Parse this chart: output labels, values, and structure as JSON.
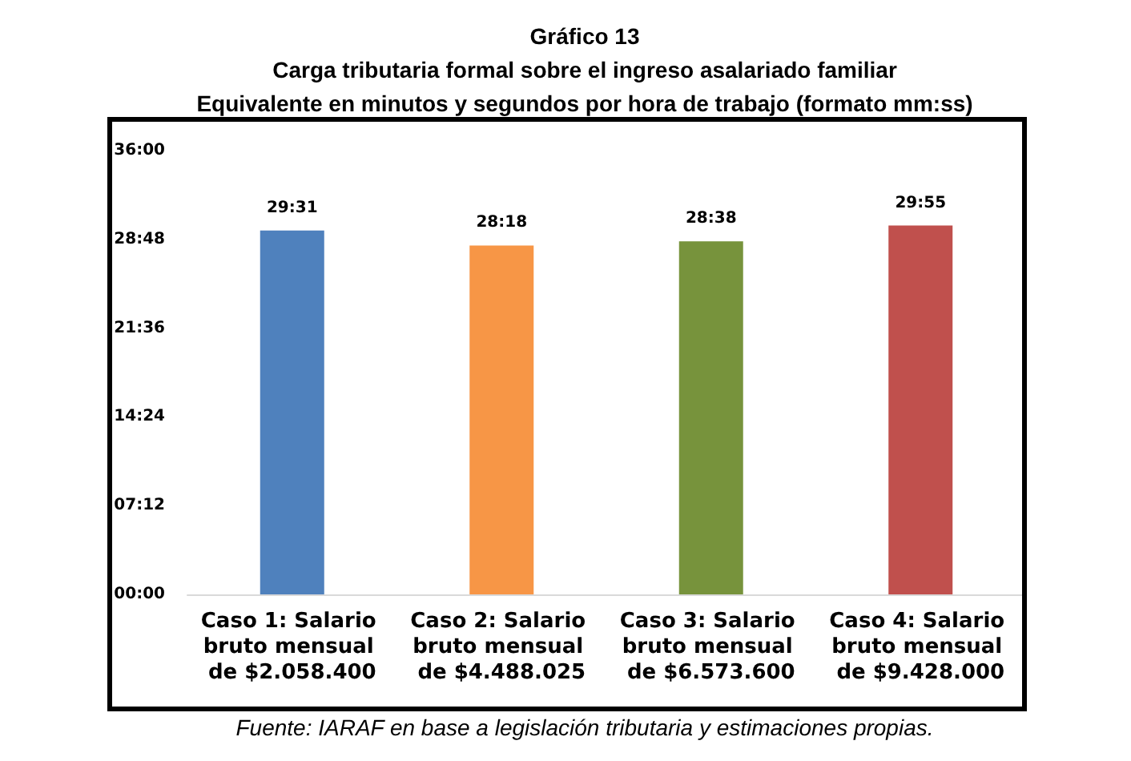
{
  "chart_data": {
    "type": "bar",
    "title": "Gráfico 13",
    "subtitle": "Carga tributaria formal sobre el ingreso asalariado familiar\nEquivalente en minutos y segundos por hora de trabajo (formato mm:ss)",
    "categories": [
      "Caso 1: Salario bruto mensual de $2.058.400",
      "Caso 2: Salario bruto mensual de $4.488.025",
      "Caso 3: Salario bruto mensual de $6.573.600",
      "Caso 4: Salario bruto mensual de $9.428.000"
    ],
    "values": [
      29.5167,
      28.3,
      28.6333,
      29.9167
    ],
    "colors": [
      "#4f81bd",
      "#f79646",
      "#77933c",
      "#c0504d"
    ],
    "value_labels": [
      "29:31",
      "28:18",
      "28:38",
      "29:55"
    ],
    "ylim": [
      0,
      36
    ],
    "yticks": [
      {
        "value": 0,
        "label": "00:00"
      },
      {
        "value": 7.2,
        "label": "07:12"
      },
      {
        "value": 14.4,
        "label": "14:24"
      },
      {
        "value": 21.6,
        "label": "21:36"
      },
      {
        "value": 28.8,
        "label": "28:48"
      },
      {
        "value": 36,
        "label": "36:00"
      }
    ],
    "grid": false,
    "annotations": [
      "Fuente: IARAF en base a legislación tributaria y estimaciones propias."
    ]
  }
}
